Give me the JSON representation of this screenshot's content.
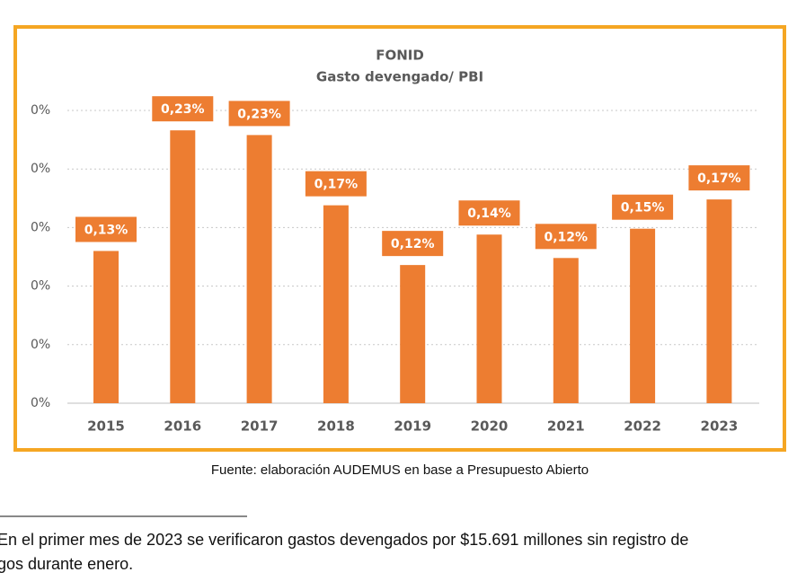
{
  "chart_data": {
    "type": "bar",
    "title": "FONID",
    "subtitle": "Gasto devengado/ PBI",
    "categories": [
      "2015",
      "2016",
      "2017",
      "2018",
      "2019",
      "2020",
      "2021",
      "2022",
      "2023"
    ],
    "values": [
      0.13,
      0.233,
      0.229,
      0.169,
      0.118,
      0.144,
      0.124,
      0.149,
      0.174
    ],
    "value_labels": [
      "0,13%",
      "0,23%",
      "0,23%",
      "0,17%",
      "0,12%",
      "0,14%",
      "0,12%",
      "0,15%",
      "0,17%"
    ],
    "color": "#ed7d31",
    "ylim": [
      0,
      0.25
    ],
    "yticks": [
      {
        "value": 0,
        "label": "0%"
      },
      {
        "value": 0.05,
        "label": "0%"
      },
      {
        "value": 0.1,
        "label": "0%"
      },
      {
        "value": 0.15,
        "label": "0%"
      },
      {
        "value": 0.2,
        "label": "0%"
      },
      {
        "value": 0.25,
        "label": "0%"
      }
    ],
    "grid": true
  },
  "source": "Fuente: elaboración AUDEMUS en base a Presupuesto Abierto",
  "footnote": [
    "En el primer mes de 2023 se verificaron gastos devengados por $15.691 millones sin registro de",
    "gos durante enero."
  ]
}
